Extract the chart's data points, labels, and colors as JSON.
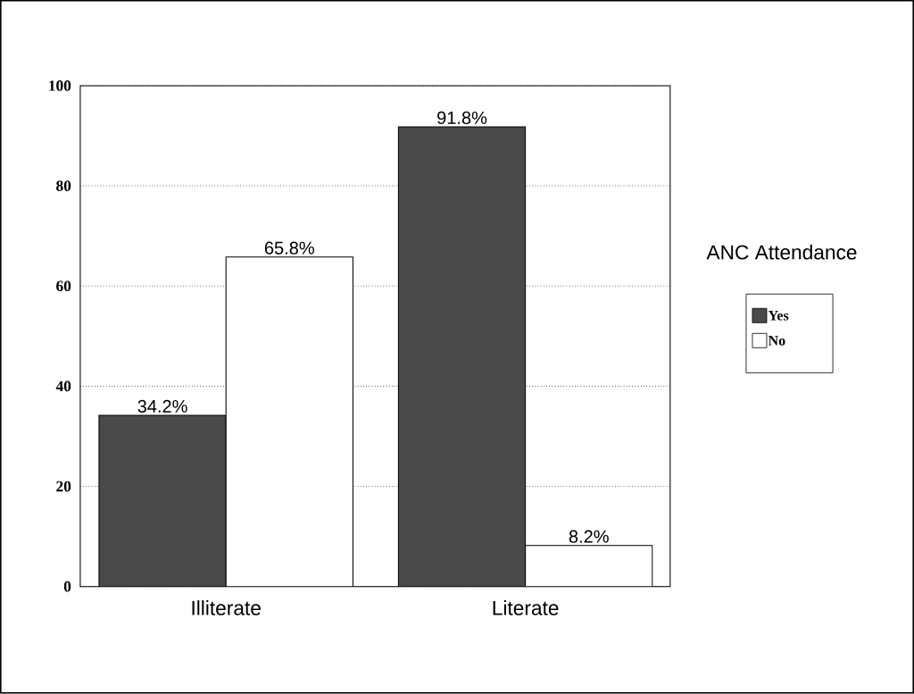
{
  "chart_data": {
    "type": "bar",
    "categories": [
      "Illiterate",
      "Literate"
    ],
    "series": [
      {
        "name": "Yes",
        "color": "#4a4a4a",
        "values": [
          34.2,
          91.8
        ],
        "value_labels": [
          "34.2%",
          "91.8%"
        ]
      },
      {
        "name": "No",
        "color": "#ffffff",
        "values": [
          65.8,
          8.2
        ],
        "value_labels": [
          "65.8%",
          "8.2%"
        ]
      }
    ],
    "ylim": [
      0,
      100
    ],
    "yticks": [
      0,
      20,
      40,
      60,
      80,
      100
    ],
    "grid": "y",
    "legend": "right",
    "legend_title": "ANC Attendance"
  }
}
